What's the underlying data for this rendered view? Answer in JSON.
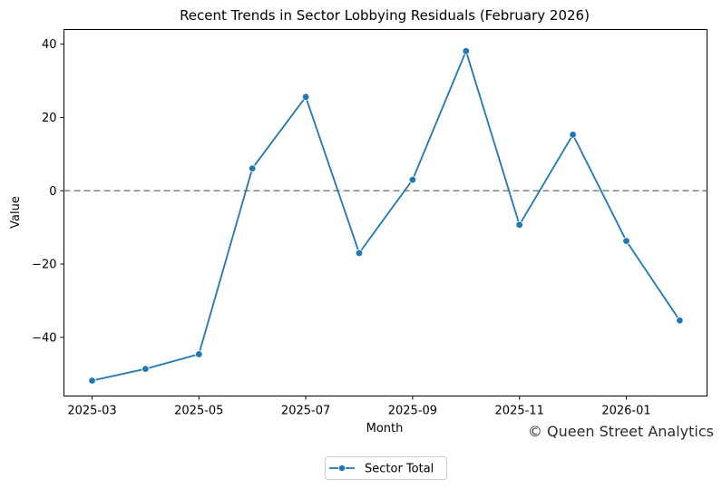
{
  "chart_data": {
    "type": "line",
    "title": "Recent Trends in Sector Lobbying Residuals (February 2026)",
    "xlabel": "Month",
    "ylabel": "Value",
    "x": [
      "2025-03",
      "2025-04",
      "2025-05",
      "2025-06",
      "2025-07",
      "2025-08",
      "2025-09",
      "2025-10",
      "2025-11",
      "2025-12",
      "2026-01",
      "2026-02"
    ],
    "series": [
      {
        "name": "Sector Total",
        "color": "#1f77b4",
        "marker": "circle",
        "values": [
          -51.8,
          -48.6,
          -44.6,
          6.1,
          25.6,
          -17.0,
          3.0,
          38.1,
          -9.3,
          15.3,
          -13.7,
          -35.4
        ]
      }
    ],
    "x_ticks": [
      "2025-03",
      "2025-05",
      "2025-07",
      "2025-09",
      "2025-11",
      "2026-01"
    ],
    "y_ticks": [
      40,
      20,
      0,
      -20,
      -40
    ],
    "y_tick_labels": [
      "40",
      "20",
      "0",
      "−20",
      "−40"
    ],
    "ylim": [
      -56,
      44
    ],
    "reference_line": {
      "y": 0,
      "style": "dashed",
      "color": "#808080"
    },
    "grid": false,
    "legend": {
      "position": "bottom-center"
    },
    "watermark": "© Queen Street Analytics"
  }
}
